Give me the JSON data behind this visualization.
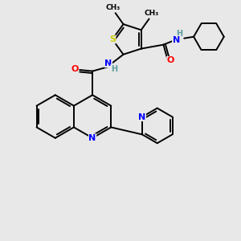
{
  "background_color": "#e8e8e8",
  "atom_colors": {
    "S": "#cccc00",
    "N": "#0000ff",
    "O": "#ff0000",
    "C": "#000000",
    "H": "#5f9ea0"
  },
  "bond_color": "#000000",
  "figsize": [
    3.0,
    3.0
  ],
  "dpi": 100
}
